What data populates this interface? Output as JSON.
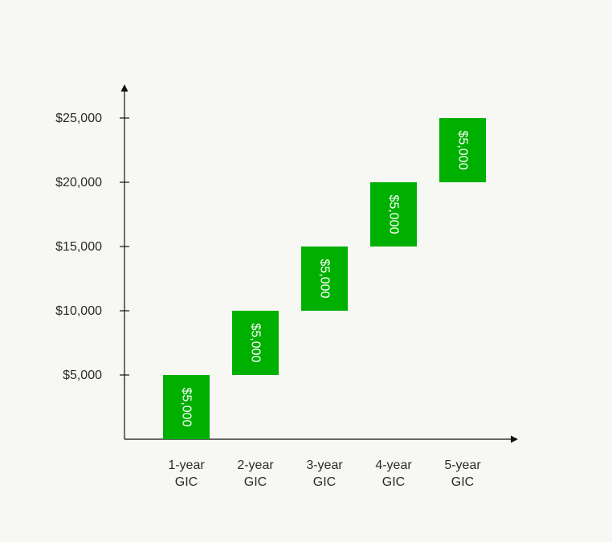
{
  "chart_data": {
    "type": "bar",
    "style": "waterfall",
    "categories": [
      [
        "1-year",
        "GIC"
      ],
      [
        "2-year",
        "GIC"
      ],
      [
        "3-year",
        "GIC"
      ],
      [
        "4-year",
        "GIC"
      ],
      [
        "5-year",
        "GIC"
      ]
    ],
    "segments": [
      {
        "start": 0,
        "end": 5000,
        "label": "$5,000"
      },
      {
        "start": 5000,
        "end": 10000,
        "label": "$5,000"
      },
      {
        "start": 10000,
        "end": 15000,
        "label": "$5,000"
      },
      {
        "start": 15000,
        "end": 20000,
        "label": "$5,000"
      },
      {
        "start": 20000,
        "end": 25000,
        "label": "$5,000"
      }
    ],
    "yticks": [
      5000,
      10000,
      15000,
      20000,
      25000
    ],
    "ytick_labels": [
      "$5,000",
      "$10,000",
      "$15,000",
      "$20,000",
      "$25,000"
    ],
    "ylim": [
      0,
      25000
    ],
    "title": "",
    "xlabel": "",
    "ylabel": "",
    "grid": false,
    "colors": {
      "bar": "#00b000",
      "axis": "#111111",
      "text": "#2a2a2a",
      "bar_text": "#ffffff",
      "background": "#f7f7f3"
    }
  }
}
